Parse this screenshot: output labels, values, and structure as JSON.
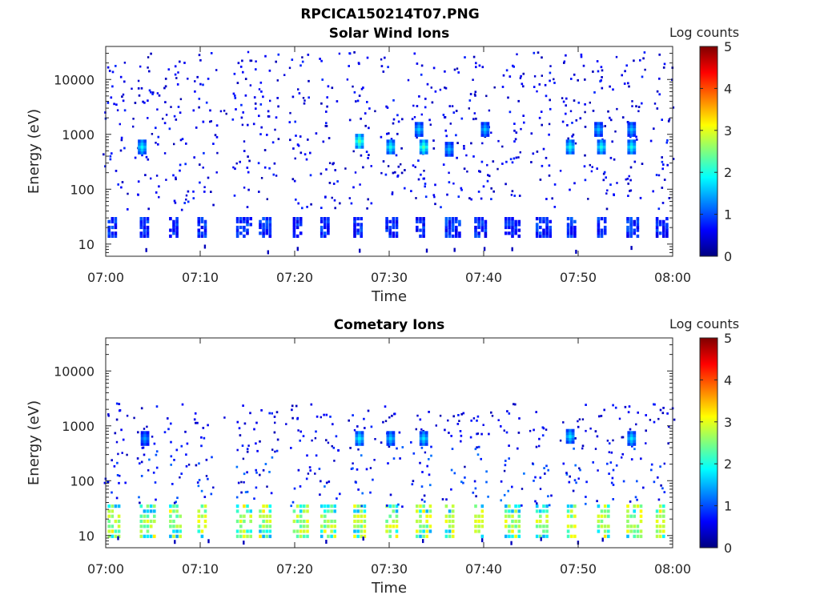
{
  "figure": {
    "filename_title": "RPCICA150214T07.PNG"
  },
  "colors": {
    "colormap": [
      "#00007f",
      "#0000ff",
      "#007fff",
      "#00ffff",
      "#7fff7f",
      "#ffff00",
      "#ff7f00",
      "#ff0000",
      "#7f0000"
    ],
    "axis": "#262626",
    "background": "#ffffff"
  },
  "chart_data": [
    {
      "type": "heatmap",
      "title": "Solar Wind Ions",
      "xlabel": "Time",
      "ylabel": "Energy (eV)",
      "x_ticks": [
        "07:00",
        "07:10",
        "07:20",
        "07:30",
        "07:40",
        "07:50",
        "08:00"
      ],
      "xlim": [
        "07:00",
        "08:00"
      ],
      "y_scale": "log",
      "y_ticks": [
        "10",
        "100",
        "1000",
        "10000"
      ],
      "ylim": [
        6,
        40000
      ],
      "colorbar": {
        "label": "Log counts",
        "range": [
          0,
          5
        ],
        "ticks": [
          "0",
          "1",
          "2",
          "3",
          "4",
          "5"
        ]
      },
      "sweeps_minutes": [
        0.8,
        4.2,
        7.3,
        10.3,
        14.4,
        16.8,
        20.4,
        23.3,
        26.8,
        30.2,
        33.4,
        36.5,
        39.6,
        42.8,
        46.1,
        49.4,
        52.6,
        55.7,
        58.8
      ],
      "low_band": {
        "energy_range_eV": [
          13,
          27
        ],
        "level": 0.9
      },
      "bright_features": [
        {
          "minute": 3.7,
          "energy_eV": 550,
          "level": 1.9
        },
        {
          "minute": 26.7,
          "energy_eV": 700,
          "level": 2.4
        },
        {
          "minute": 30.0,
          "energy_eV": 550,
          "level": 2.0
        },
        {
          "minute": 33.5,
          "energy_eV": 550,
          "level": 2.3
        },
        {
          "minute": 36.2,
          "energy_eV": 500,
          "level": 1.6
        },
        {
          "minute": 49.0,
          "energy_eV": 550,
          "level": 2.0
        },
        {
          "minute": 52.3,
          "energy_eV": 550,
          "level": 2.0
        },
        {
          "minute": 55.5,
          "energy_eV": 550,
          "level": 2.0
        },
        {
          "minute": 33.0,
          "energy_eV": 1150,
          "level": 1.7
        },
        {
          "minute": 40.0,
          "energy_eV": 1150,
          "level": 1.6
        },
        {
          "minute": 52.0,
          "energy_eV": 1150,
          "level": 1.6
        },
        {
          "minute": 55.5,
          "energy_eV": 1150,
          "level": 1.6
        }
      ],
      "grid": false
    },
    {
      "type": "heatmap",
      "title": "Cometary Ions",
      "xlabel": "Time",
      "ylabel": "Energy (eV)",
      "x_ticks": [
        "07:00",
        "07:10",
        "07:20",
        "07:30",
        "07:40",
        "07:50",
        "08:00"
      ],
      "xlim": [
        "07:00",
        "08:00"
      ],
      "y_scale": "log",
      "y_ticks": [
        "10",
        "100",
        "1000",
        "10000"
      ],
      "ylim": [
        6,
        40000
      ],
      "colorbar": {
        "label": "Log counts",
        "range": [
          0,
          5
        ],
        "ticks": [
          "0",
          "1",
          "2",
          "3",
          "4",
          "5"
        ]
      },
      "sweeps_minutes": [
        0.8,
        4.2,
        7.3,
        10.3,
        14.4,
        16.8,
        20.4,
        23.3,
        26.8,
        30.2,
        33.4,
        36.5,
        39.6,
        42.8,
        46.1,
        49.4,
        52.6,
        55.7,
        58.8
      ],
      "low_band": {
        "energy_range_eV": [
          9,
          32
        ],
        "level": 2.6
      },
      "bright_features": [
        {
          "minute": 26.7,
          "energy_eV": 550,
          "level": 1.9
        },
        {
          "minute": 30.0,
          "energy_eV": 550,
          "level": 1.7
        },
        {
          "minute": 33.5,
          "energy_eV": 550,
          "level": 1.8
        },
        {
          "minute": 49.0,
          "energy_eV": 600,
          "level": 1.8
        },
        {
          "minute": 55.5,
          "energy_eV": 550,
          "level": 1.8
        },
        {
          "minute": 4.0,
          "energy_eV": 550,
          "level": 1.4
        }
      ],
      "grid": false
    }
  ]
}
